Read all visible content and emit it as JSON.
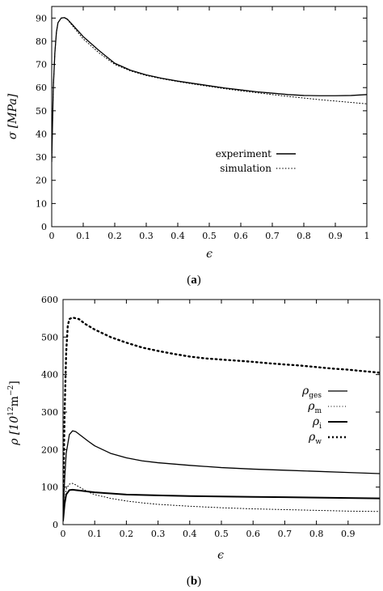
{
  "chart_data": [
    {
      "type": "line",
      "panel_label": "(a)",
      "panel_letter": "a",
      "xlabel": "ϵ",
      "ylabel": "σ [MPa]",
      "xlim": [
        0,
        1
      ],
      "ylim": [
        0,
        95
      ],
      "xticks": [
        "0",
        "0.1",
        "0.2",
        "0.3",
        "0.4",
        "0.5",
        "0.6",
        "0.7",
        "0.8",
        "0.9",
        "1"
      ],
      "yticks": [
        "0",
        "10",
        "20",
        "30",
        "40",
        "50",
        "60",
        "70",
        "80",
        "90"
      ],
      "grid": false,
      "legend_position": "right-middle",
      "series": [
        {
          "name": "experiment",
          "style": "solid",
          "x": [
            0,
            0.005,
            0.01,
            0.015,
            0.02,
            0.03,
            0.04,
            0.05,
            0.07,
            0.1,
            0.15,
            0.2,
            0.25,
            0.3,
            0.35,
            0.4,
            0.45,
            0.5,
            0.55,
            0.6,
            0.65,
            0.7,
            0.75,
            0.8,
            0.85,
            0.9,
            0.95,
            1.0
          ],
          "y": [
            28,
            60,
            75,
            84,
            88,
            90,
            90.2,
            89.5,
            86.5,
            82,
            76,
            70.5,
            67.5,
            65.5,
            64,
            62.8,
            61.8,
            60.8,
            59.8,
            59,
            58.2,
            57.6,
            57,
            56.6,
            56.5,
            56.5,
            56.6,
            57
          ]
        },
        {
          "name": "simulation",
          "style": "dotted",
          "x": [
            0,
            0.005,
            0.01,
            0.015,
            0.02,
            0.03,
            0.04,
            0.05,
            0.07,
            0.1,
            0.15,
            0.2,
            0.25,
            0.3,
            0.35,
            0.4,
            0.45,
            0.5,
            0.55,
            0.6,
            0.65,
            0.7,
            0.75,
            0.8,
            0.85,
            0.9,
            0.95,
            1.0
          ],
          "y": [
            28,
            60,
            75,
            84,
            88,
            90,
            90.2,
            89.3,
            86,
            81,
            75,
            70,
            67.2,
            65.2,
            63.8,
            62.6,
            61.5,
            60.5,
            59.5,
            58.6,
            57.8,
            57,
            56.2,
            55.5,
            54.8,
            54.2,
            53.6,
            53
          ]
        }
      ]
    },
    {
      "type": "line",
      "panel_label": "(b)",
      "panel_letter": "b",
      "xlabel": "ϵ",
      "ylabel_main": "ρ [10",
      "ylabel_sup1": "12",
      "ylabel_mid": "m",
      "ylabel_sup2": "−2",
      "ylabel_end": "]",
      "xlim": [
        0,
        1
      ],
      "ylim": [
        0,
        600
      ],
      "xticks": [
        "0",
        "0.1",
        "0.2",
        "0.3",
        "0.4",
        "0.5",
        "0.6",
        "0.7",
        "0.8",
        "0.9"
      ],
      "yticks": [
        "0",
        "100",
        "200",
        "300",
        "400",
        "500",
        "600"
      ],
      "grid": false,
      "legend_position": "right-middle",
      "series": [
        {
          "name_main": "ρ",
          "name_sub": "ges",
          "style": "solid",
          "x": [
            0,
            0.005,
            0.01,
            0.02,
            0.03,
            0.04,
            0.06,
            0.08,
            0.1,
            0.15,
            0.2,
            0.25,
            0.3,
            0.4,
            0.5,
            0.6,
            0.7,
            0.8,
            0.9,
            1.0
          ],
          "y": [
            20,
            120,
            190,
            240,
            250,
            248,
            235,
            222,
            210,
            190,
            178,
            170,
            165,
            158,
            152,
            148,
            145,
            142,
            139,
            136
          ]
        },
        {
          "name_main": "ρ",
          "name_sub": "m",
          "style": "dotted",
          "x": [
            0,
            0.005,
            0.01,
            0.02,
            0.03,
            0.04,
            0.06,
            0.08,
            0.1,
            0.15,
            0.2,
            0.25,
            0.3,
            0.4,
            0.5,
            0.6,
            0.7,
            0.8,
            0.9,
            1.0
          ],
          "y": [
            10,
            60,
            95,
            108,
            110,
            106,
            96,
            87,
            80,
            70,
            63,
            58,
            54,
            49,
            45,
            42,
            40,
            38,
            36,
            35
          ]
        },
        {
          "name_main": "ρ",
          "name_sub": "i",
          "style": "solid-thick",
          "x": [
            0,
            0.005,
            0.01,
            0.02,
            0.03,
            0.04,
            0.06,
            0.08,
            0.1,
            0.15,
            0.2,
            0.3,
            0.4,
            0.5,
            0.6,
            0.7,
            0.8,
            0.9,
            1.0
          ],
          "y": [
            10,
            55,
            80,
            92,
            93,
            92,
            90,
            88,
            86,
            83,
            80,
            78,
            76,
            75,
            74,
            73,
            72,
            71,
            70
          ]
        },
        {
          "name_main": "ρ",
          "name_sub": "w",
          "style": "dotted-thick",
          "x": [
            0,
            0.005,
            0.01,
            0.015,
            0.02,
            0.03,
            0.05,
            0.07,
            0.1,
            0.15,
            0.2,
            0.25,
            0.3,
            0.35,
            0.4,
            0.45,
            0.5,
            0.55,
            0.6,
            0.65,
            0.7,
            0.75,
            0.8,
            0.85,
            0.9,
            0.95,
            1.0
          ],
          "y": [
            30,
            300,
            460,
            530,
            548,
            552,
            548,
            535,
            520,
            500,
            485,
            472,
            463,
            455,
            448,
            443,
            440,
            437,
            434,
            430,
            427,
            424,
            420,
            416,
            413,
            409,
            405
          ]
        }
      ]
    }
  ]
}
